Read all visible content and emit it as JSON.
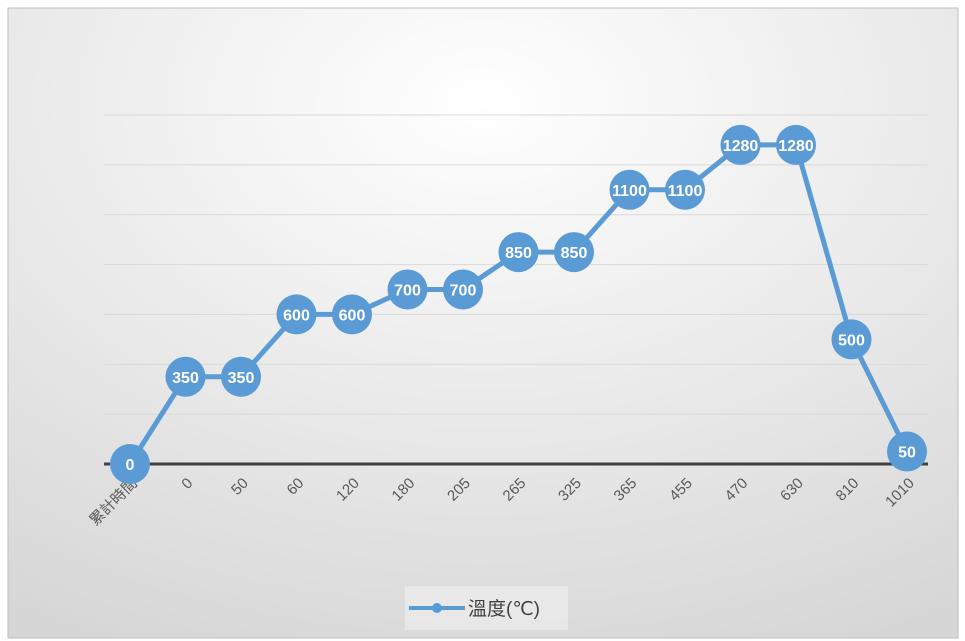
{
  "chart_data": {
    "type": "line",
    "title": "",
    "xlabel": "",
    "ylabel": "",
    "categories": [
      "累計時間",
      "0",
      "50",
      "60",
      "120",
      "180",
      "205",
      "265",
      "325",
      "365",
      "455",
      "470",
      "630",
      "810",
      "1010"
    ],
    "series": [
      {
        "name": "溫度(℃)",
        "values": [
          0,
          350,
          350,
          600,
          600,
          700,
          700,
          850,
          850,
          1100,
          1100,
          1280,
          1280,
          500,
          50
        ]
      }
    ],
    "ylim": [
      0,
      1400
    ],
    "y_gridline_step": 200,
    "grid": true,
    "y_tick_labels_visible": false,
    "data_labels": true,
    "legend": {
      "position": "bottom"
    },
    "colors": {
      "series": "#5B9BD5",
      "gridline": "#D9D9D9",
      "axis": "#404040",
      "label_text": "#FFFFFF",
      "tick_text": "#595959",
      "background_top": "#FFFFFF",
      "background_bottom": "#D6D6D6",
      "border": "#BFBFBF"
    }
  }
}
